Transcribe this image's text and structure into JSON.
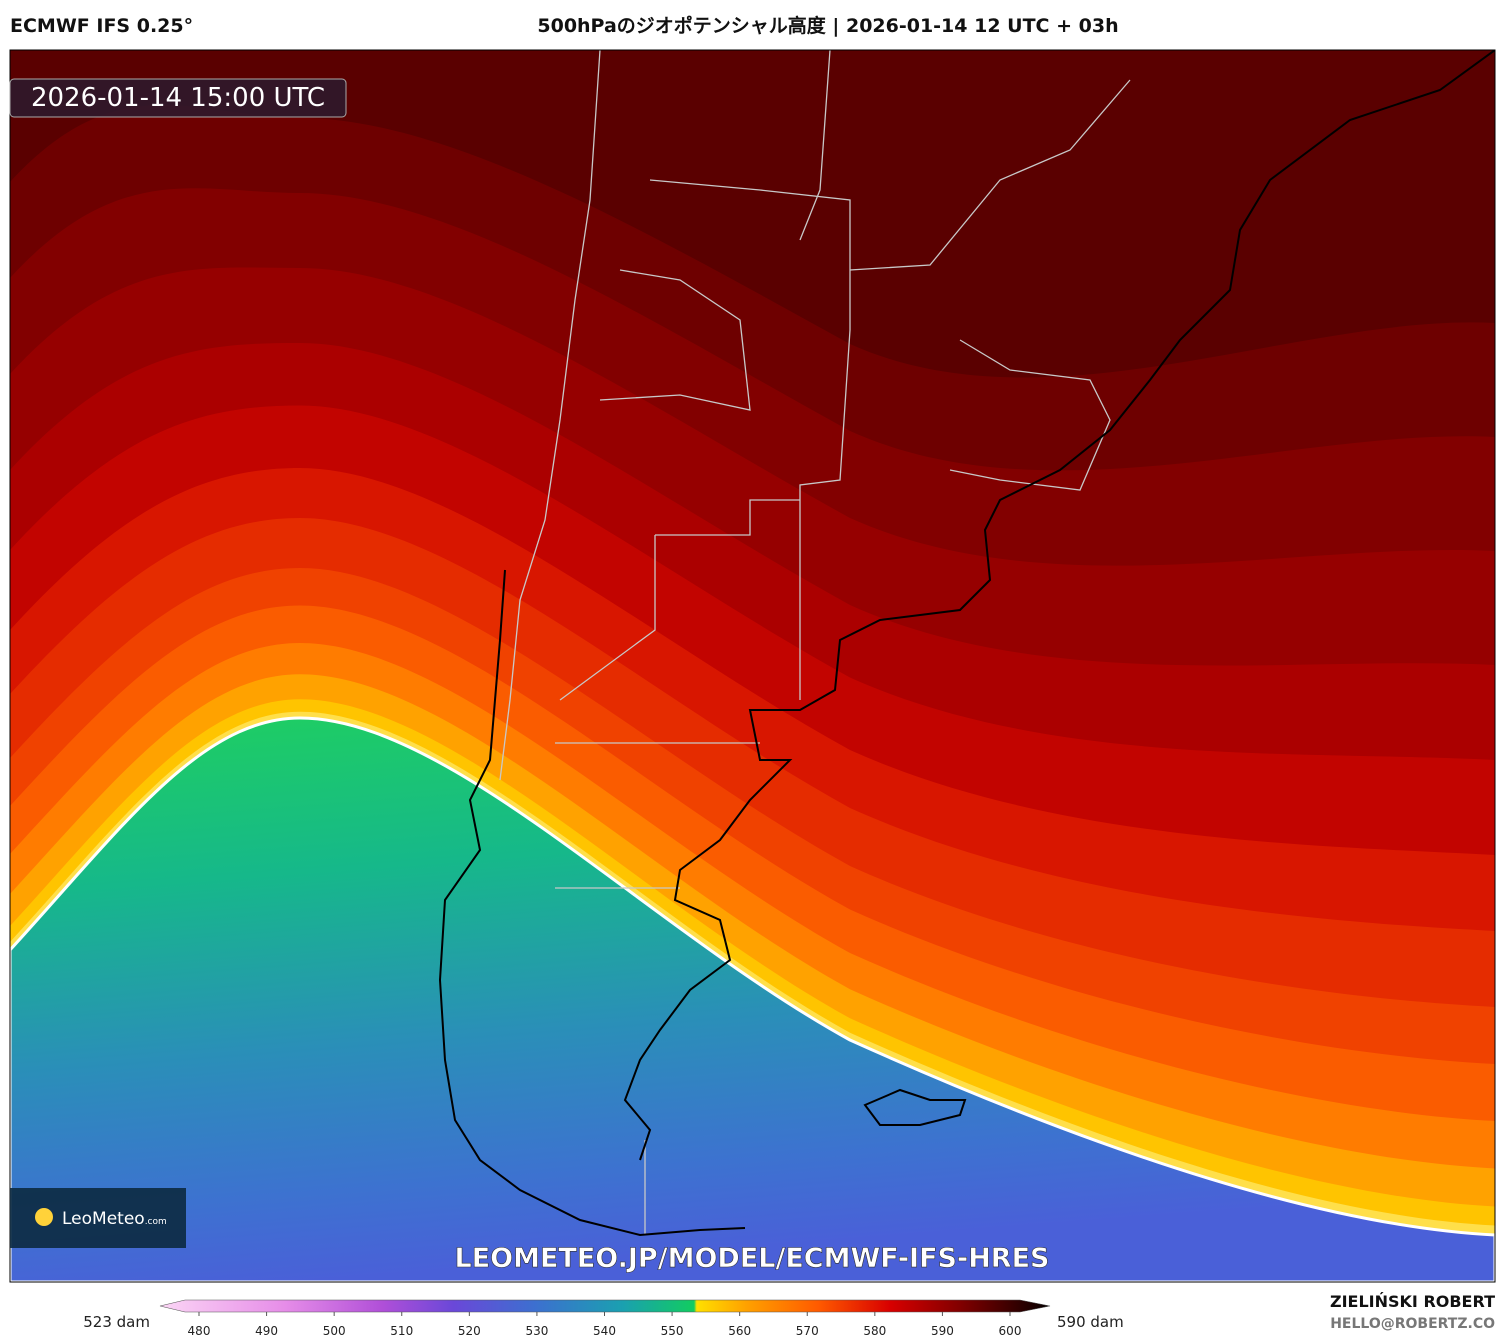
{
  "header": {
    "model": "ECMWF IFS 0.25°",
    "title": "500hPaのジオポテンシャル高度 | 2026-01-14 12 UTC + 03h"
  },
  "map": {
    "valid_time": "2026-01-14 15:00 UTC",
    "logo": "LeoMeteo",
    "logo_suffix": ".com",
    "url": "LEOMETEO.JP/MODEL/ECMWF-IFS-HRES"
  },
  "colorbar": {
    "min_label": "523 dam",
    "max_label": "590 dam",
    "ticks": [
      480,
      490,
      500,
      510,
      520,
      530,
      540,
      550,
      560,
      570,
      580,
      590,
      600
    ]
  },
  "footer": {
    "author": "ZIELIŃSKI ROBERT",
    "contact": "HELLO@ROBERTZ.CO"
  }
}
